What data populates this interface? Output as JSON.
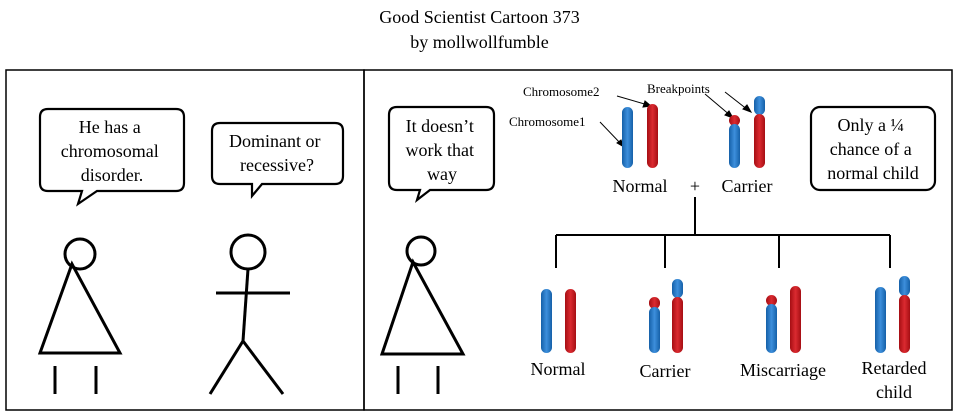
{
  "title": "Good Scientist Cartoon 373",
  "author": "by mollwollfumble",
  "panel1": {
    "woman_bubble": [
      "He has a",
      "chromosomal",
      "disorder."
    ],
    "man_bubble": [
      "Dominant or",
      "recessive?"
    ]
  },
  "panel2": {
    "woman_bubble": [
      "It doesn’t",
      "work that",
      "way"
    ],
    "right_bubble": [
      "Only a ¼",
      "chance of a",
      "normal child"
    ],
    "labels": {
      "chromosome1": "Chromosome1",
      "chromosome2": "Chromosome2",
      "breakpoints": "Breakpoints",
      "parent_normal": "Normal",
      "plus": "+",
      "parent_carrier": "Carrier"
    },
    "outcomes": [
      "Normal",
      "Carrier",
      "Miscarriage",
      "Retarded",
      "child"
    ]
  },
  "colors": {
    "chromosome_blue": "#1f6fc0",
    "chromosome_red": "#c0151b"
  }
}
